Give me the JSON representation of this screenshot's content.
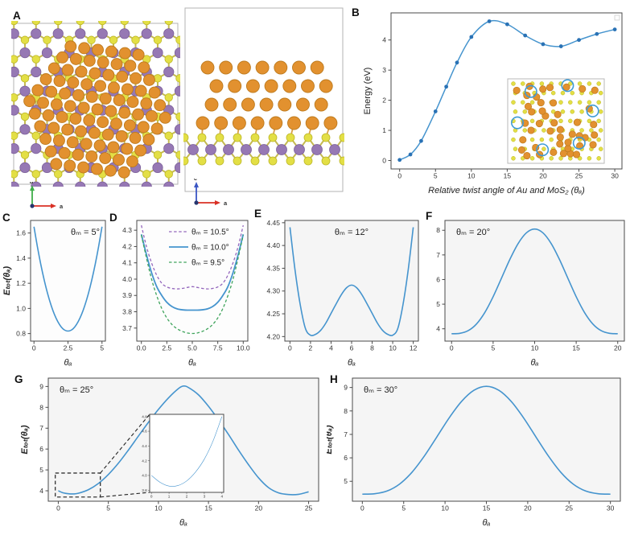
{
  "panel_labels": [
    "A",
    "B",
    "C",
    "D",
    "E",
    "F",
    "G",
    "H"
  ],
  "colors": {
    "line_blue": "#4594ce",
    "marker_blue": "#2a72b5",
    "dash_purple": "#9467bd",
    "dash_green": "#3fa45c",
    "frame": "#4a4a4a",
    "tick_text": "#333333",
    "panel_bg_gray": "#f5f5f5"
  },
  "structure": {
    "colors": {
      "au": "#e2912f",
      "au_edge": "#bd7a1d",
      "mo": "#9678b4",
      "mo_edge": "#7b5f99",
      "s": "#e3df45",
      "s_edge": "#bdb82a",
      "bond": "#c5ba52",
      "au_bond": "#d9a24a",
      "box": "#b3b3b3",
      "circle_blue": "#3e9bd6"
    },
    "top_view_axes": {
      "v": "b",
      "h": "a",
      "v_color": "#3fae49",
      "h_color": "#d93025"
    },
    "side_view_axes": {
      "v": "c",
      "h": "a",
      "v_color": "#3a56c4",
      "h_color": "#d93025"
    },
    "inset_circles": [
      [
        0.24,
        0.15
      ],
      [
        0.62,
        0.08
      ],
      [
        0.88,
        0.38
      ],
      [
        0.1,
        0.52
      ],
      [
        0.36,
        0.84
      ],
      [
        0.74,
        0.76
      ]
    ]
  },
  "chart_data": [
    {
      "id": "B",
      "type": "line",
      "xlabel": "Relative twist angle of Au and MoS₂ (θₐ)",
      "ylabel": "Energy (eV)",
      "ylabel_math": false,
      "xlim": [
        -1.2,
        31
      ],
      "ylim": [
        -0.28,
        4.9
      ],
      "xticks": {
        "v": [
          0,
          5,
          10,
          15,
          20,
          25,
          30
        ],
        "l": [
          "0",
          "5",
          "10",
          "15",
          "20",
          "25",
          "30"
        ]
      },
      "yticks": {
        "v": [
          0,
          1,
          2,
          3,
          4
        ],
        "l": [
          "0",
          "1",
          "2",
          "3",
          "4"
        ]
      },
      "bg": "#ffffff",
      "corner_box": true,
      "struct_inset": [
        181,
        94,
        120,
        105
      ],
      "series": [
        {
          "name": "energy-vs-twist",
          "color": "#4594ce",
          "width": 1.5,
          "marker": true,
          "marker_color": "#2a72b5",
          "x": [
            0,
            1.5,
            3,
            5,
            6.5,
            8,
            10,
            12.5,
            15,
            17.5,
            20,
            22.5,
            25,
            27.5,
            30
          ],
          "y": [
            0.02,
            0.2,
            0.65,
            1.63,
            2.45,
            3.25,
            4.1,
            4.62,
            4.52,
            4.15,
            3.86,
            3.79,
            4.0,
            4.2,
            4.35
          ]
        }
      ]
    },
    {
      "id": "C",
      "type": "line",
      "title": "θₘ = 5°",
      "title_pos": "tr",
      "xlabel": "θₐ",
      "ylabel": "Eₜₒₜ(θₐ)",
      "ylabel_math": true,
      "xlim": [
        -0.25,
        5.25
      ],
      "ylim": [
        0.74,
        1.7
      ],
      "xticks": {
        "v": [
          0,
          2.5,
          5
        ],
        "l": [
          "0",
          "2.5",
          "5"
        ]
      },
      "yticks": {
        "v": [
          0.8,
          1.0,
          1.2,
          1.4,
          1.6
        ],
        "l": [
          "0.8",
          "1.0",
          "1.2",
          "1.4",
          "1.6"
        ]
      },
      "bg": "#fdfdfd",
      "series": [
        {
          "name": "etot-5deg",
          "color": "#4594ce",
          "width": 1.6,
          "x": [
            0,
            0.25,
            0.5,
            0.75,
            1,
            1.25,
            1.5,
            1.75,
            2,
            2.25,
            2.5,
            2.75,
            3,
            3.25,
            3.5,
            3.75,
            4,
            4.25,
            4.5,
            4.75,
            5
          ],
          "y": [
            1.65,
            1.492,
            1.351,
            1.227,
            1.119,
            1.028,
            0.953,
            0.895,
            0.853,
            0.828,
            0.82,
            0.828,
            0.853,
            0.895,
            0.953,
            1.028,
            1.119,
            1.227,
            1.351,
            1.492,
            1.65
          ]
        }
      ]
    },
    {
      "id": "D",
      "type": "line",
      "xlabel": "θₐ",
      "xlim": [
        -0.45,
        10.45
      ],
      "ylim": [
        3.62,
        4.36
      ],
      "xticks": {
        "v": [
          0,
          2.5,
          5,
          7.5,
          10
        ],
        "l": [
          "0.0",
          "2.5",
          "5.0",
          "7.5",
          "10.0"
        ]
      },
      "yticks": {
        "v": [
          3.7,
          3.8,
          3.9,
          4.0,
          4.1,
          4.2,
          4.3
        ],
        "l": [
          "3.7",
          "3.8",
          "3.9",
          "4.0",
          "4.1",
          "4.2",
          "4.3"
        ]
      },
      "bg": "#fdfdfd",
      "legend": [
        {
          "label": "θₘ = 10.5°",
          "color": "#9467bd",
          "dash": true
        },
        {
          "label": "θₘ = 10.0°",
          "color": "#4594ce",
          "dash": false
        },
        {
          "label": "θₘ =  9.5°",
          "color": "#3fa45c",
          "dash": true
        }
      ],
      "series": [
        {
          "name": "etot-10p5",
          "color": "#9467bd",
          "dash": true,
          "width": 1.3,
          "x": [
            0,
            0.5,
            1,
            1.5,
            2,
            2.5,
            3,
            3.5,
            4,
            4.5,
            5,
            5.5,
            6,
            6.5,
            7,
            7.5,
            8,
            8.5,
            9,
            9.5,
            10
          ],
          "y": [
            4.33,
            4.2,
            4.1,
            4.025,
            3.975,
            3.952,
            3.943,
            3.94,
            3.943,
            3.949,
            3.954,
            3.949,
            3.943,
            3.94,
            3.943,
            3.952,
            3.975,
            4.025,
            4.1,
            4.2,
            4.33
          ]
        },
        {
          "name": "etot-10p0",
          "color": "#4594ce",
          "dash": false,
          "width": 1.8,
          "x": [
            0,
            0.5,
            1,
            1.5,
            2,
            2.5,
            3,
            3.5,
            4,
            4.5,
            5,
            5.5,
            6,
            6.5,
            7,
            7.5,
            8,
            8.5,
            9,
            9.5,
            10
          ],
          "y": [
            4.275,
            4.15,
            4.04,
            3.955,
            3.9,
            3.858,
            3.832,
            3.818,
            3.812,
            3.81,
            3.81,
            3.81,
            3.812,
            3.818,
            3.832,
            3.858,
            3.9,
            3.955,
            4.04,
            4.15,
            4.275
          ]
        },
        {
          "name": "etot-9p5",
          "color": "#3fa45c",
          "dash": true,
          "width": 1.3,
          "x": [
            0,
            0.5,
            1,
            1.5,
            2,
            2.5,
            3,
            3.5,
            4,
            4.5,
            5,
            5.5,
            6,
            6.5,
            7,
            7.5,
            8,
            8.5,
            9,
            9.5,
            10
          ],
          "y": [
            4.27,
            4.13,
            4.0,
            3.9,
            3.82,
            3.762,
            3.722,
            3.696,
            3.68,
            3.67,
            3.667,
            3.67,
            3.68,
            3.696,
            3.722,
            3.762,
            3.82,
            3.9,
            4.0,
            4.13,
            4.27
          ]
        }
      ]
    },
    {
      "id": "E",
      "type": "line",
      "title": "θₘ = 12°",
      "title_pos": "tc",
      "xlabel": "θₐ",
      "xlim": [
        -0.5,
        12.5
      ],
      "ylim": [
        4.19,
        4.455
      ],
      "xticks": {
        "v": [
          0,
          2,
          4,
          6,
          8,
          10,
          12
        ],
        "l": [
          "0",
          "2",
          "4",
          "6",
          "8",
          "10",
          "12"
        ]
      },
      "yticks": {
        "v": [
          4.2,
          4.25,
          4.3,
          4.35,
          4.4,
          4.45
        ],
        "l": [
          "4.20",
          "4.25",
          "4.30",
          "4.35",
          "4.40",
          "4.45"
        ]
      },
      "bg": "#f5f5f5",
      "series": [
        {
          "name": "etot-12deg",
          "color": "#4594ce",
          "width": 1.6,
          "x": [
            0,
            0.5,
            1,
            1.5,
            2,
            2.5,
            3,
            3.5,
            4,
            4.5,
            5,
            5.5,
            6,
            6.5,
            7,
            7.5,
            8,
            8.5,
            9,
            9.5,
            10,
            10.5,
            11,
            11.5,
            12
          ],
          "y": [
            4.44,
            4.345,
            4.27,
            4.218,
            4.203,
            4.205,
            4.214,
            4.23,
            4.251,
            4.272,
            4.292,
            4.307,
            4.313,
            4.307,
            4.292,
            4.272,
            4.251,
            4.23,
            4.214,
            4.205,
            4.203,
            4.218,
            4.27,
            4.345,
            4.44
          ]
        }
      ]
    },
    {
      "id": "F",
      "type": "line",
      "title": "θₘ = 20°",
      "title_pos": "tl",
      "xlabel": "θₐ",
      "xlim": [
        -0.8,
        20.8
      ],
      "ylim": [
        3.5,
        8.4
      ],
      "xticks": {
        "v": [
          0,
          5,
          10,
          15,
          20
        ],
        "l": [
          "0",
          "5",
          "10",
          "15",
          "20"
        ]
      },
      "yticks": {
        "v": [
          4,
          5,
          6,
          7,
          8
        ],
        "l": [
          "4",
          "5",
          "6",
          "7",
          "8"
        ]
      },
      "bg": "#f5f5f5",
      "series": [
        {
          "name": "etot-20deg",
          "color": "#4594ce",
          "width": 1.6,
          "x": [
            0,
            1,
            2,
            3,
            4,
            5,
            6,
            7,
            8,
            9,
            10,
            11,
            12,
            13,
            14,
            15,
            16,
            17,
            18,
            19,
            20
          ],
          "y": [
            3.8,
            3.816,
            3.925,
            4.197,
            4.663,
            5.303,
            6.05,
            6.807,
            7.456,
            7.895,
            8.05,
            7.895,
            7.456,
            6.807,
            6.05,
            5.303,
            4.663,
            4.197,
            3.925,
            3.816,
            3.8
          ]
        }
      ]
    },
    {
      "id": "G",
      "type": "line",
      "title": "θₘ = 25°",
      "title_pos": "tl",
      "xlabel": "θₐ",
      "ylabel": "Eₜₒₜ(θₐ)",
      "ylabel_math": true,
      "xlim": [
        -1,
        26
      ],
      "ylim": [
        3.5,
        9.4
      ],
      "xticks": {
        "v": [
          0,
          5,
          10,
          15,
          20,
          25
        ],
        "l": [
          "0",
          "5",
          "10",
          "15",
          "20",
          "25"
        ]
      },
      "yticks": {
        "v": [
          4,
          5,
          6,
          7,
          8,
          9
        ],
        "l": [
          "4",
          "5",
          "6",
          "7",
          "8",
          "9"
        ]
      },
      "bg": "#f5f5f5",
      "zoom_box": {
        "x": [
          -0.3,
          4.2
        ],
        "y": [
          3.7,
          4.85
        ]
      },
      "inset": 6,
      "inset_rect": [
        178,
        55,
        92,
        97
      ],
      "series": [
        {
          "name": "etot-25deg",
          "color": "#4594ce",
          "width": 1.6,
          "x": [
            0,
            0.5,
            1,
            1.5,
            2,
            3,
            4,
            5,
            6,
            7,
            8,
            9,
            10,
            11,
            12,
            12.5,
            13,
            14,
            15,
            16,
            17,
            18,
            19,
            20,
            21,
            22,
            23,
            24,
            25
          ],
          "y": [
            4.0,
            3.9,
            3.86,
            3.85,
            3.88,
            4.05,
            4.35,
            4.78,
            5.32,
            5.95,
            6.62,
            7.28,
            7.9,
            8.45,
            8.9,
            9.02,
            8.95,
            8.6,
            8.05,
            7.4,
            6.7,
            5.95,
            5.25,
            4.62,
            4.15,
            3.9,
            3.82,
            3.83,
            3.95
          ]
        }
      ]
    },
    {
      "id": "G-inset",
      "type": "line",
      "xlim": [
        -0.1,
        4.1
      ],
      "ylim": [
        3.77,
        4.83
      ],
      "xticks": {
        "v": [
          0,
          1,
          2,
          3,
          4
        ],
        "l": [
          "0",
          "1",
          "2",
          "3",
          "4"
        ]
      },
      "yticks": {
        "v": [
          3.8,
          4.0,
          4.2,
          4.4,
          4.6,
          4.8
        ],
        "l": [
          "3.8",
          "4.0",
          "4.2",
          "4.4",
          "4.6",
          "4.8"
        ]
      },
      "bg": "#ffffff",
      "series": [
        {
          "name": "etot-25deg-zoom",
          "color": "#4594ce",
          "width": 1.1,
          "x": [
            0,
            0.5,
            1,
            1.5,
            2,
            2.5,
            3,
            3.5,
            4
          ],
          "y": [
            4.0,
            3.905,
            3.855,
            3.862,
            3.925,
            4.045,
            4.22,
            4.47,
            4.8
          ]
        }
      ]
    },
    {
      "id": "H",
      "type": "line",
      "title": "θₘ = 30°",
      "title_pos": "tl",
      "xlabel": "θₐ",
      "ylabel": "Eₜₒₜ(θₐ)",
      "ylabel_math": true,
      "xlim": [
        -1.2,
        31.2
      ],
      "ylim": [
        4.15,
        9.4
      ],
      "xticks": {
        "v": [
          0,
          5,
          10,
          15,
          20,
          25,
          30
        ],
        "l": [
          "0",
          "5",
          "10",
          "15",
          "20",
          "25",
          "30"
        ]
      },
      "yticks": {
        "v": [
          5,
          6,
          7,
          8,
          9
        ],
        "l": [
          "5",
          "6",
          "7",
          "8",
          "9"
        ]
      },
      "bg": "#f5f5f5",
      "series": [
        {
          "name": "etot-30deg",
          "color": "#4594ce",
          "width": 1.6,
          "x": [
            0,
            1.5,
            3,
            4.5,
            6,
            7.5,
            9,
            10.5,
            12,
            13.5,
            15,
            16.5,
            18,
            19.5,
            21,
            22.5,
            24,
            25.5,
            27,
            28.5,
            30
          ],
          "y": [
            4.45,
            4.468,
            4.586,
            4.88,
            5.384,
            6.077,
            6.886,
            7.705,
            8.407,
            8.882,
            9.05,
            8.882,
            8.407,
            7.705,
            6.886,
            6.077,
            5.384,
            4.88,
            4.586,
            4.468,
            4.45
          ]
        }
      ]
    }
  ]
}
